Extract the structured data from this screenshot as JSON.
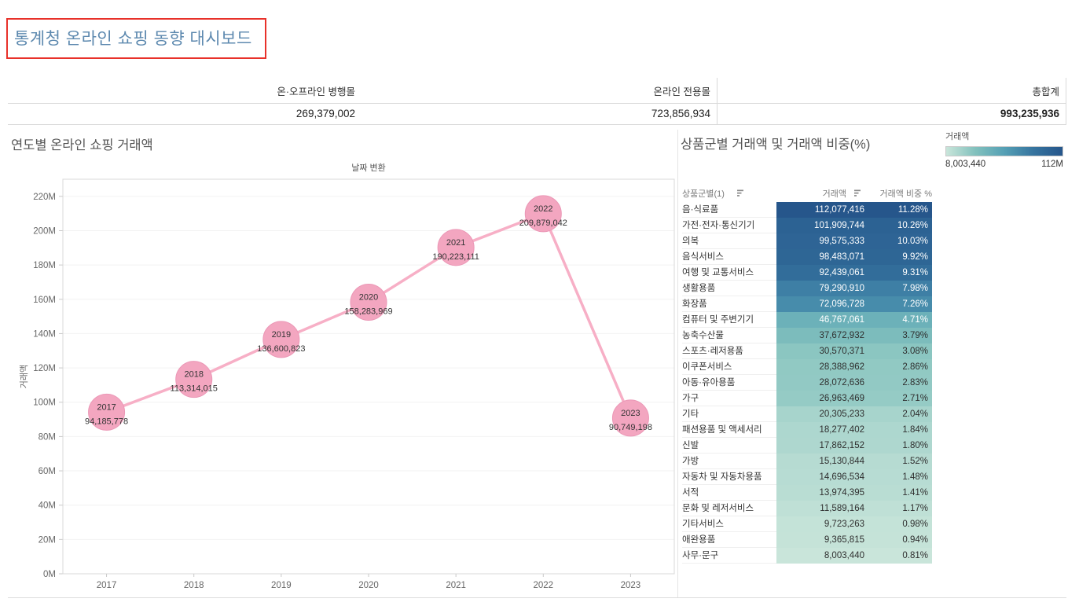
{
  "header": {
    "title": "통계청 온라인 쇼핑 동향 대시보드"
  },
  "summary": {
    "columns": [
      {
        "label": "온·오프라인 병행몰",
        "value": "269,379,002"
      },
      {
        "label": "온라인 전용몰",
        "value": "723,856,934"
      },
      {
        "label": "총합계",
        "value": "993,235,936"
      }
    ]
  },
  "chart_data": [
    {
      "type": "line",
      "title": "연도별 온라인 쇼핑 거래액",
      "axis_field_label": "날짜 변환",
      "xlabel": "",
      "ylabel": "거래액",
      "categories": [
        "2017",
        "2018",
        "2019",
        "2020",
        "2021",
        "2022",
        "2023"
      ],
      "values": [
        94185778,
        113314015,
        136600823,
        158283969,
        190223111,
        209879042,
        90749198
      ],
      "value_labels": [
        "94,185,778",
        "113,314,015",
        "136,600,823",
        "158,283,969",
        "190,223,111",
        "209,879,042",
        "90,749,198"
      ],
      "ylim": [
        0,
        230
      ],
      "ytick_step": 20,
      "ytick_max": 220,
      "ytick_suffix": "M",
      "grid": "faint-horizontal",
      "legend_position": "none",
      "line_color": "#f7afc6",
      "marker_fill": "#f3a6c0",
      "marker_stroke": "#eb97b6"
    },
    {
      "type": "table",
      "title": "상품군별 거래액 및 거래액 비중(%)",
      "legend": {
        "label": "거래액",
        "min_label": "8,003,440",
        "max_label": "112M"
      },
      "columns": [
        "상품군별(1)",
        "거래액",
        "거래액 비중 %"
      ],
      "color_domain": [
        8003440,
        112077416
      ],
      "gradient": [
        "#c9e5da",
        "#82c1bd",
        "#55a0b5",
        "#36749f",
        "#26568b"
      ],
      "rows": [
        {
          "category": "음·식료품",
          "amount": 112077416,
          "share": "11.28%"
        },
        {
          "category": "가전·전자·통신기기",
          "amount": 101909744,
          "share": "10.26%"
        },
        {
          "category": "의복",
          "amount": 99575333,
          "share": "10.03%"
        },
        {
          "category": "음식서비스",
          "amount": 98483071,
          "share": "9.92%"
        },
        {
          "category": "여행 및 교통서비스",
          "amount": 92439061,
          "share": "9.31%"
        },
        {
          "category": "생활용품",
          "amount": 79290910,
          "share": "7.98%"
        },
        {
          "category": "화장품",
          "amount": 72096728,
          "share": "7.26%"
        },
        {
          "category": "컴퓨터 및 주변기기",
          "amount": 46767061,
          "share": "4.71%"
        },
        {
          "category": "농축수산물",
          "amount": 37672932,
          "share": "3.79%"
        },
        {
          "category": "스포츠·레저용품",
          "amount": 30570371,
          "share": "3.08%"
        },
        {
          "category": "이쿠폰서비스",
          "amount": 28388962,
          "share": "2.86%"
        },
        {
          "category": "아동·유아용품",
          "amount": 28072636,
          "share": "2.83%"
        },
        {
          "category": "가구",
          "amount": 26963469,
          "share": "2.71%"
        },
        {
          "category": "기타",
          "amount": 20305233,
          "share": "2.04%"
        },
        {
          "category": "패션용품 및 액세서리",
          "amount": 18277402,
          "share": "1.84%"
        },
        {
          "category": "신발",
          "amount": 17862152,
          "share": "1.80%"
        },
        {
          "category": "가방",
          "amount": 15130844,
          "share": "1.52%"
        },
        {
          "category": "자동차 및 자동차용품",
          "amount": 14696534,
          "share": "1.48%"
        },
        {
          "category": "서적",
          "amount": 13974395,
          "share": "1.41%"
        },
        {
          "category": "문화 및 레저서비스",
          "amount": 11589164,
          "share": "1.17%"
        },
        {
          "category": "기타서비스",
          "amount": 9723263,
          "share": "0.98%"
        },
        {
          "category": "애완용품",
          "amount": 9365815,
          "share": "0.94%"
        },
        {
          "category": "사무·문구",
          "amount": 8003440,
          "share": "0.81%"
        }
      ]
    }
  ]
}
